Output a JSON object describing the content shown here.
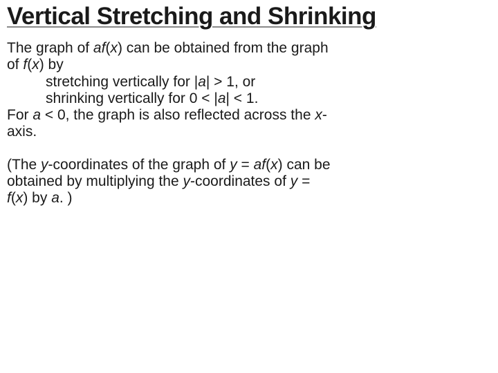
{
  "title": "Vertical Stretching and Shrinking",
  "para1": {
    "line1_a": "The graph of  ",
    "line1_af": "af",
    "line1_b": "(",
    "line1_x": "x",
    "line1_c": ") can be obtained from the graph",
    "line2_a": "of  ",
    "line2_f": "f",
    "line2_b": "(",
    "line2_x": "x",
    "line2_c": ") by"
  },
  "bullet1": {
    "a": "stretching vertically for |",
    "i": "a",
    "b": "| > 1, or"
  },
  "bullet2": {
    "a": "shrinking vertically for 0 < |",
    "i": "a",
    "b": "| < 1."
  },
  "para2": {
    "a": "For ",
    "i": "a",
    "b": " < 0, the graph is also reflected across the ",
    "x": "x",
    "c": "-",
    "line2": "axis."
  },
  "para3": {
    "a": "(The ",
    "y1": "y",
    "b": "-coordinates of the graph of ",
    "y2": "y",
    "c": " = ",
    "af": "af",
    "d": "(",
    "x1": "x",
    "e": ") can be",
    "line2a": "obtained by multiplying the ",
    "y3": "y",
    "line2b": "-coordinates of ",
    "y4": "y",
    "line2c": " =",
    "line3f": "f",
    "line3a": "(",
    "line3x": "x",
    "line3b": ") by ",
    "line3i": "a",
    "line3c": ". )"
  },
  "style": {
    "title_color": "#1a1a1a",
    "underline_color": "#888888",
    "body_color": "#1a1a1a",
    "background": "#ffffff",
    "title_fontsize": 35,
    "body_fontsize": 21,
    "corner_color1": "#d9d9d9",
    "corner_color2": "#bfbfbf"
  }
}
